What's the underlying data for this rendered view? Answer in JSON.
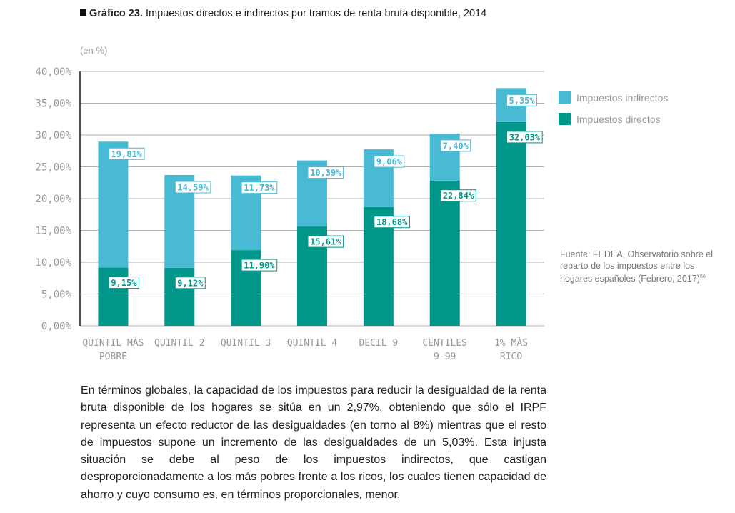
{
  "title": {
    "prefix": "Gráfico 23.",
    "text": " Impuestos directos e indirectos por tramos de renta bruta disponible, 2014"
  },
  "source": {
    "text": "Fuente: FEDEA, Observatorio sobre el reparto de los impuestos entre los hogares españoles (Febrero, 2017)",
    "footnote": "56"
  },
  "body_text": "En términos globales, la capacidad de los impuestos para reducir la desigualdad de la renta bruta disponible de los hogares se sitúa en un 2,97%, obteniendo que sólo el IRPF representa un efecto reductor de las desigualdades (en torno al 8%) mientras que el resto de impuestos supone un incremento de las desigualdades de un 5,03%. Esta injusta situación se debe al peso de los impuestos indirectos, que castigan desproporcionadamente a los más pobres frente a los ricos, los cuales tienen capacidad de ahorro y cuyo consumo es, en términos proporcionales, menor.",
  "chart_data": {
    "type": "bar",
    "stacked": true,
    "unit_label": "(en %)",
    "categories": [
      [
        "QUINTIL MÁS",
        "POBRE"
      ],
      [
        "QUINTIL 2"
      ],
      [
        "QUINTIL 3"
      ],
      [
        "QUINTIL 4"
      ],
      [
        "DECIL 9"
      ],
      [
        "CENTILES",
        "9-99"
      ],
      [
        "1% MÁS",
        "RICO"
      ]
    ],
    "series": [
      {
        "name": "Impuestos directos",
        "color": "#00968a",
        "values": [
          9.15,
          9.12,
          11.9,
          15.61,
          18.68,
          22.84,
          32.03
        ],
        "labels": [
          "9,15%",
          "9,12%",
          "11,90%",
          "15,61%",
          "18,68%",
          "22,84%",
          "32,03%"
        ]
      },
      {
        "name": "Impuestos indirectos",
        "color": "#48bad4",
        "values": [
          19.81,
          14.59,
          11.73,
          10.39,
          9.06,
          7.4,
          5.35
        ],
        "labels": [
          "19,81%",
          "14,59%",
          "11,73%",
          "10,39%",
          "9,06%",
          "7,40%",
          "5,35%"
        ]
      }
    ],
    "ylim": [
      0,
      40
    ],
    "yticks": [
      "0,00%",
      "5,00%",
      "10,00%",
      "15,00%",
      "20,00%",
      "25,00%",
      "30,00%",
      "35,00%",
      "40,00%"
    ],
    "grid": true,
    "legend_position": "right"
  }
}
